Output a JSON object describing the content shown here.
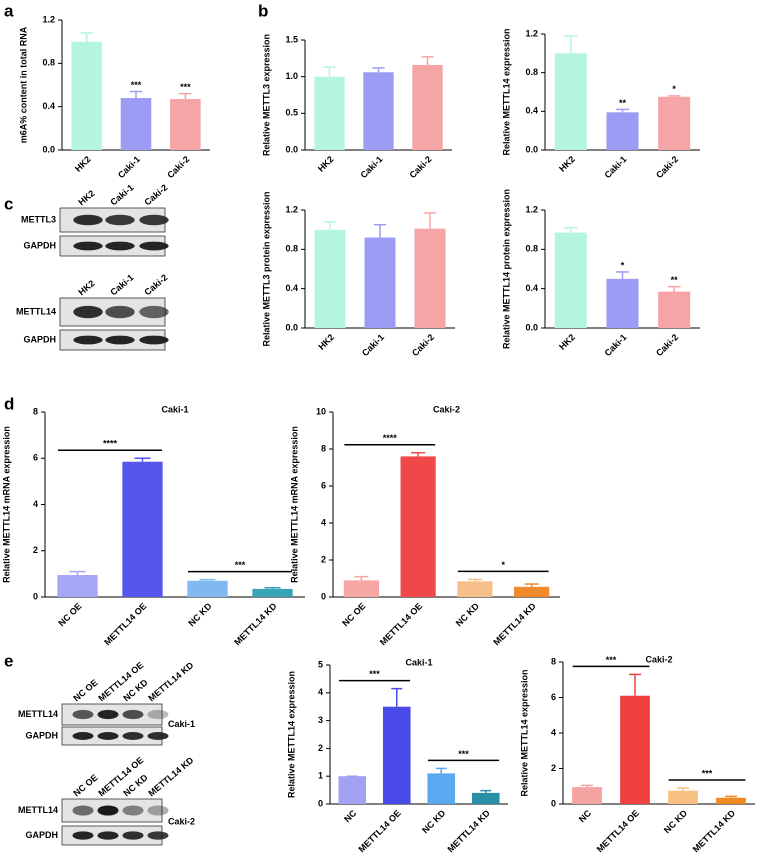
{
  "panel_labels": [
    "a",
    "b",
    "c",
    "d",
    "e"
  ],
  "blots": [
    {
      "lanes": [
        "HK2",
        "Caki-1",
        "Caki-2"
      ],
      "rows": [
        "METTL3",
        "GAPDH"
      ]
    },
    {
      "lanes": [
        "HK2",
        "Caki-1",
        "Caki-2"
      ],
      "rows": [
        "METTL14",
        "GAPDH"
      ]
    },
    {
      "lanes": [
        "NC OE",
        "METTL14 OE",
        "NC KD",
        "METTL14 KD"
      ],
      "rows": [
        "METTL14",
        "GAPDH"
      ],
      "cell_line": "Caki-1"
    },
    {
      "lanes": [
        "NC OE",
        "METTL14 OE",
        "NC KD",
        "METTL14 KD"
      ],
      "rows": [
        "METTL14",
        "GAPDH"
      ],
      "cell_line": "Caki-2"
    }
  ],
  "chart_data": [
    {
      "type": "bar",
      "ylabel": "m6A% content in total RNA",
      "categories": [
        "HK2",
        "Caki-1",
        "Caki-2"
      ],
      "values": [
        1.0,
        0.48,
        0.47
      ],
      "errors": [
        0.08,
        0.06,
        0.05
      ],
      "colors": [
        "#b5f5de",
        "#9c9cf5",
        "#f5a5a5"
      ],
      "ylim": [
        0,
        1.2
      ],
      "yticks": [
        {
          "value": 0,
          "label": "0.0"
        },
        0.4,
        0.8,
        1.2
      ],
      "annotations": [
        {
          "text": "***",
          "categories": [
            "Caki-1"
          ]
        },
        {
          "text": "***",
          "categories": [
            "Caki-2"
          ]
        }
      ]
    },
    {
      "type": "bar",
      "ylabel": "Relative METTL3 expression",
      "categories": [
        "HK2",
        "Caki-1",
        "Caki-2"
      ],
      "values": [
        1.0,
        1.06,
        1.16
      ],
      "errors": [
        0.13,
        0.06,
        0.11
      ],
      "colors": [
        "#b5f5de",
        "#9c9cf5",
        "#f5a5a5"
      ],
      "ylim": [
        0,
        1.5
      ],
      "yticks": [
        {
          "value": 0,
          "label": "0.0"
        },
        0.5,
        {
          "value": 1,
          "label": "1.0"
        },
        1.5
      ],
      "annotations": []
    },
    {
      "type": "bar",
      "ylabel": "Relative METTL14  expression",
      "categories": [
        "HK2",
        "Caki-1",
        "Caki-2"
      ],
      "values": [
        1.0,
        0.39,
        0.55
      ],
      "errors": [
        0.18,
        0.03,
        0.01
      ],
      "colors": [
        "#b5f5de",
        "#9c9cf5",
        "#f5a5a5"
      ],
      "ylim": [
        0,
        1.2
      ],
      "yticks": [
        {
          "value": 0,
          "label": "0.0"
        },
        0.4,
        0.8,
        1.2
      ],
      "annotations": [
        {
          "text": "**",
          "categories": [
            "Caki-1"
          ]
        },
        {
          "text": "*",
          "categories": [
            "Caki-2"
          ]
        }
      ]
    },
    {
      "type": "bar",
      "ylabel": "Relative METTL3 protein expression",
      "categories": [
        "HK2",
        "Caki-1",
        "Caki-2"
      ],
      "values": [
        1.0,
        0.92,
        1.01
      ],
      "errors": [
        0.08,
        0.13,
        0.16
      ],
      "colors": [
        "#b5f5de",
        "#9c9cf5",
        "#f5a5a5"
      ],
      "ylim": [
        0,
        1.2
      ],
      "yticks": [
        {
          "value": 0,
          "label": "0.0"
        },
        0.4,
        0.8,
        1.2
      ],
      "annotations": []
    },
    {
      "type": "bar",
      "ylabel": "Relative METTL14 protein expression",
      "categories": [
        "HK2",
        "Caki-1",
        "Caki-2"
      ],
      "values": [
        0.97,
        0.5,
        0.37
      ],
      "errors": [
        0.05,
        0.07,
        0.05
      ],
      "colors": [
        "#b5f5de",
        "#9c9cf5",
        "#f5a5a5"
      ],
      "ylim": [
        0,
        1.2
      ],
      "yticks": [
        {
          "value": 0,
          "label": "0.0"
        },
        0.4,
        0.8,
        1.2
      ],
      "annotations": [
        {
          "text": "*",
          "categories": [
            "Caki-1"
          ]
        },
        {
          "text": "**",
          "categories": [
            "Caki-2"
          ]
        }
      ]
    },
    {
      "type": "bar",
      "title": "Caki-1",
      "ylabel": "Relative METTL14 mRNA expression",
      "categories": [
        "NC OE",
        "METTL14 OE",
        "NC KD",
        "METTL14 KD"
      ],
      "values": [
        0.95,
        5.85,
        0.7,
        0.35
      ],
      "errors": [
        0.15,
        0.15,
        0.05,
        0.05
      ],
      "colors": [
        "#a6a6f7",
        "#5656ee",
        "#80b8f0",
        "#3aa2b6"
      ],
      "ylim": [
        0,
        8
      ],
      "yticks": [
        0,
        2,
        4,
        6,
        8
      ],
      "annotations": [
        {
          "text": "****",
          "categories": [
            "NC OE",
            "METTL14 OE"
          ]
        },
        {
          "text": "***",
          "categories": [
            "NC KD",
            "METTL14 KD"
          ]
        }
      ]
    },
    {
      "type": "bar",
      "title": "Caki-2",
      "ylabel": "Relative METTL14 mRNA expression",
      "categories": [
        "NC OE",
        "METTL14 OE",
        "NC KD",
        "METTL14 KD"
      ],
      "values": [
        0.9,
        7.6,
        0.85,
        0.55
      ],
      "errors": [
        0.2,
        0.2,
        0.1,
        0.15
      ],
      "colors": [
        "#f7a6a6",
        "#f04848",
        "#f7c08a",
        "#f08a2a"
      ],
      "ylim": [
        0,
        10
      ],
      "yticks": [
        0,
        2,
        4,
        6,
        8,
        10
      ],
      "annotations": [
        {
          "text": "****",
          "categories": [
            "NC OE",
            "METTL14 OE"
          ]
        },
        {
          "text": "*",
          "categories": [
            "NC KD",
            "METTL14 KD"
          ]
        }
      ]
    },
    {
      "type": "bar",
      "title": "Caki-1",
      "ylabel": "Relative METTL14  expression",
      "categories": [
        "NC",
        "METTL14 OE",
        "NC KD",
        "METTL14 KD"
      ],
      "values": [
        1.0,
        3.5,
        1.1,
        0.4
      ],
      "errors": [
        0,
        0.65,
        0.18,
        0.08
      ],
      "colors": [
        "#a2a2f5",
        "#4a4ae8",
        "#5aa8f0",
        "#2a90a8"
      ],
      "ylim": [
        0,
        5
      ],
      "yticks": [
        0,
        1,
        2,
        3,
        4,
        5
      ],
      "annotations": [
        {
          "text": "***",
          "categories": [
            "NC",
            "METTL14 OE"
          ]
        },
        {
          "text": "***",
          "categories": [
            "NC KD",
            "METTL14 KD"
          ]
        }
      ]
    },
    {
      "type": "bar",
      "title": "Caki-2",
      "ylabel": "Relative METTL14  expression",
      "categories": [
        "NC",
        "METTL14 OE",
        "NC KD",
        "METTL14 KD"
      ],
      "values": [
        0.95,
        6.1,
        0.75,
        0.35
      ],
      "errors": [
        0.1,
        1.2,
        0.15,
        0.08
      ],
      "colors": [
        "#f5a2a2",
        "#f04040",
        "#f7c080",
        "#f08a20"
      ],
      "ylim": [
        0,
        8
      ],
      "yticks": [
        0,
        2,
        4,
        6,
        8
      ],
      "annotations": [
        {
          "text": "***",
          "categories": [
            "NC",
            "METTL14 OE"
          ]
        },
        {
          "text": "***",
          "categories": [
            "NC KD",
            "METTL14 KD"
          ]
        }
      ]
    }
  ]
}
